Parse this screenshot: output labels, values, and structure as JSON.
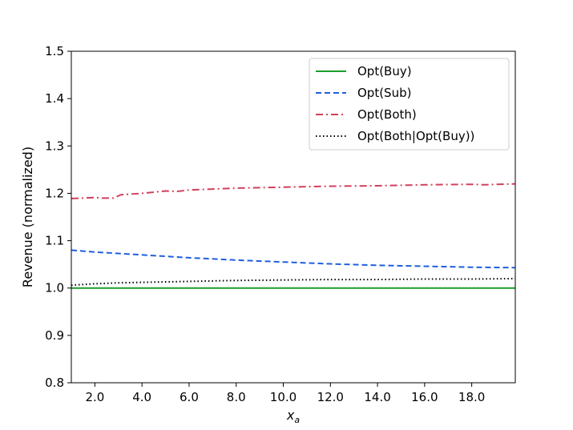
{
  "chart_data": {
    "type": "line",
    "xlabel": "x",
    "xlabel_sub": "a",
    "ylabel": "Revenue (normalized)",
    "xlim": [
      1.0,
      19.85
    ],
    "ylim": [
      0.8,
      1.5
    ],
    "x_ticks": [
      2,
      4,
      6,
      8,
      10,
      12,
      14,
      16,
      18
    ],
    "x_tick_labels": [
      "2.0",
      "4.0",
      "6.0",
      "8.0",
      "10.0",
      "12.0",
      "14.0",
      "16.0",
      "18.0"
    ],
    "y_ticks": [
      0.8,
      0.9,
      1.0,
      1.1,
      1.2,
      1.3,
      1.4,
      1.5
    ],
    "y_tick_labels": [
      "0.8",
      "0.9",
      "1.0",
      "1.1",
      "1.2",
      "1.3",
      "1.4",
      "1.5"
    ],
    "grid": false,
    "legend_position": "top-right",
    "series": [
      {
        "name": "Opt(Buy)",
        "color": "#1a9e2c",
        "style": "solid",
        "x": [
          1.0,
          2.0,
          4.0,
          6.0,
          8.0,
          10.0,
          12.0,
          14.0,
          16.0,
          18.0,
          19.85
        ],
        "y": [
          1.0,
          1.0,
          1.0,
          1.0,
          1.0,
          1.0,
          1.0,
          1.0,
          1.0,
          1.0,
          1.0
        ]
      },
      {
        "name": "Opt(Sub)",
        "color": "#1f5fe0",
        "style": "dashed",
        "x": [
          1.0,
          2.0,
          4.0,
          6.0,
          8.0,
          10.0,
          12.0,
          14.0,
          16.0,
          18.0,
          19.85
        ],
        "y": [
          1.08,
          1.076,
          1.07,
          1.064,
          1.059,
          1.055,
          1.051,
          1.048,
          1.046,
          1.044,
          1.043
        ]
      },
      {
        "name": "Opt(Both)",
        "color": "#d2405a",
        "style": "dashdot",
        "x": [
          1.0,
          1.5,
          2.0,
          2.3,
          2.8,
          3.1,
          4.0,
          5.0,
          5.5,
          6.0,
          8.0,
          10.0,
          12.0,
          14.0,
          16.0,
          18.0,
          18.5,
          19.85
        ],
        "y": [
          1.189,
          1.19,
          1.191,
          1.19,
          1.19,
          1.197,
          1.2,
          1.205,
          1.204,
          1.207,
          1.211,
          1.213,
          1.215,
          1.216,
          1.218,
          1.219,
          1.218,
          1.22
        ]
      },
      {
        "name": "Opt(Both|Opt(Buy))",
        "color": "#000000",
        "style": "dotted",
        "x": [
          1.0,
          2.0,
          3.0,
          4.0,
          5.0,
          6.0,
          8.0,
          10.0,
          12.0,
          14.0,
          16.0,
          18.0,
          19.85
        ],
        "y": [
          1.006,
          1.009,
          1.011,
          1.012,
          1.013,
          1.014,
          1.016,
          1.017,
          1.018,
          1.018,
          1.019,
          1.019,
          1.02
        ]
      }
    ]
  }
}
